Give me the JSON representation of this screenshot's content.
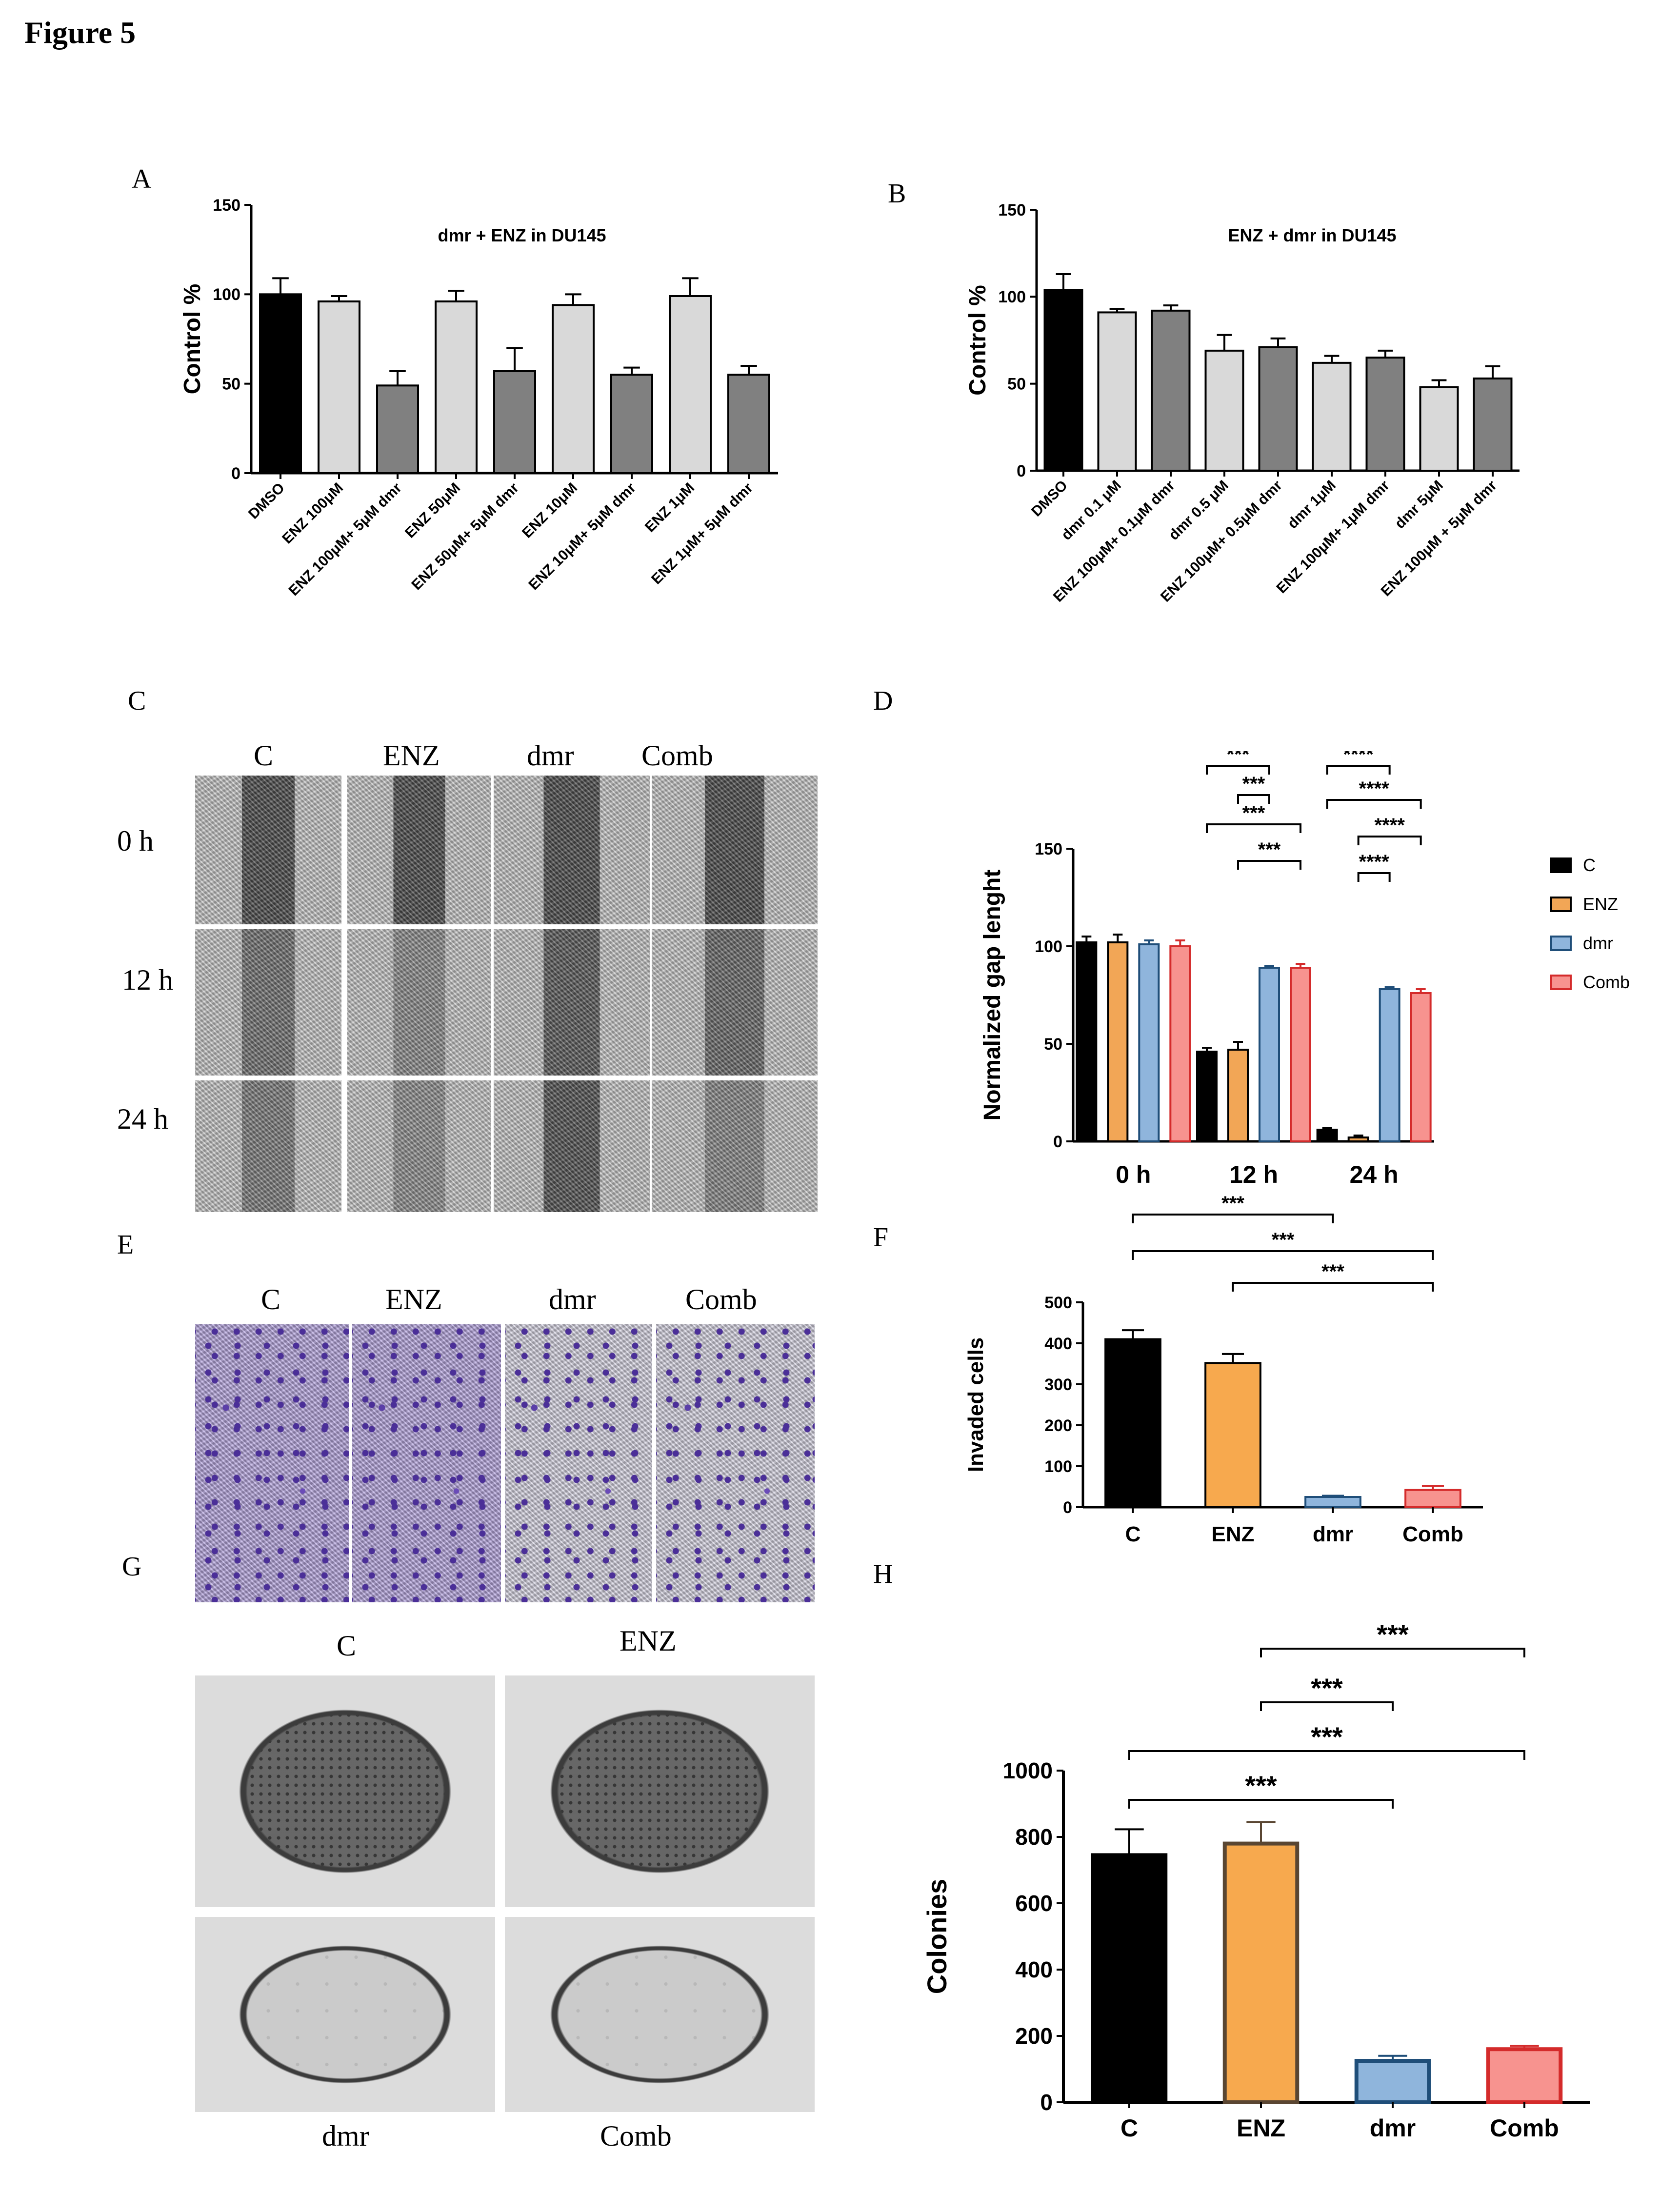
{
  "figure_title": "Figure 5",
  "panels": {
    "A": "A",
    "B": "B",
    "C": "C",
    "D": "D",
    "E": "E",
    "F": "F",
    "G": "G",
    "H": "H"
  },
  "scratch_assay": {
    "columns": [
      "C",
      "ENZ",
      "dmr",
      "Comb"
    ],
    "rows": [
      "0 h",
      "12 h",
      "24 h"
    ]
  },
  "invasion_images": {
    "columns": [
      "C",
      "ENZ",
      "dmr",
      "Comb"
    ]
  },
  "colony_images": {
    "top": [
      "C",
      "ENZ"
    ],
    "bottom": [
      "dmr",
      "Comb"
    ]
  },
  "chart_data": [
    {
      "id": "A",
      "type": "bar",
      "title": "dmr + ENZ in DU145",
      "ylabel": "Control %",
      "ylim": [
        0,
        150
      ],
      "yticks": [
        0,
        50,
        100,
        150
      ],
      "categories": [
        "DMSO",
        "ENZ 100μM",
        "ENZ 100μM+ 5μM dmr",
        "ENZ 50μM",
        "ENZ 50μM+ 5μM dmr",
        "ENZ 10μM",
        "ENZ 10μM+ 5μM dmr",
        "ENZ 1μM",
        "ENZ 1μM+ 5μM dmr"
      ],
      "values": [
        100,
        96,
        49,
        96,
        57,
        94,
        55,
        99,
        55
      ],
      "errors": [
        9,
        3,
        8,
        6,
        13,
        6,
        4,
        10,
        5
      ],
      "colors": [
        "#000000",
        "#d9d9d9",
        "#808080",
        "#d9d9d9",
        "#808080",
        "#d9d9d9",
        "#808080",
        "#d9d9d9",
        "#808080"
      ]
    },
    {
      "id": "B",
      "type": "bar",
      "title": "ENZ + dmr in DU145",
      "ylabel": "Control %",
      "ylim": [
        0,
        150
      ],
      "yticks": [
        0,
        50,
        100,
        150
      ],
      "categories": [
        "DMSO",
        "dmr 0.1 μM",
        "ENZ 100μM+ 0.1μM dmr",
        "dmr 0.5 μM",
        "ENZ 100μM+ 0.5μM dmr",
        "dmr 1μM",
        "ENZ 100μM+ 1μM dmr",
        "dmr 5μM",
        "ENZ 100μM + 5μM dmr"
      ],
      "values": [
        104,
        91,
        92,
        69,
        71,
        62,
        65,
        48,
        53
      ],
      "errors": [
        9,
        2,
        3,
        9,
        5,
        4,
        4,
        4,
        7
      ],
      "colors": [
        "#000000",
        "#d9d9d9",
        "#808080",
        "#d9d9d9",
        "#808080",
        "#d9d9d9",
        "#808080",
        "#d9d9d9",
        "#808080"
      ]
    },
    {
      "id": "D",
      "type": "bar",
      "ylabel": "Normalized gap lenght",
      "ylim": [
        0,
        150
      ],
      "yticks": [
        0,
        50,
        100,
        150
      ],
      "categories": [
        "0 h",
        "12 h",
        "24 h"
      ],
      "legend": [
        "C",
        "ENZ",
        "dmr",
        "Comb"
      ],
      "legend_position": "right",
      "series": [
        {
          "name": "C",
          "values": [
            102,
            46,
            6
          ],
          "errors": [
            3,
            2,
            1
          ],
          "color": "#000000",
          "edge": "#000000"
        },
        {
          "name": "ENZ",
          "values": [
            102,
            47,
            2
          ],
          "errors": [
            4,
            4,
            1
          ],
          "color": "#f2a656",
          "edge": "#000000"
        },
        {
          "name": "dmr",
          "values": [
            101,
            89,
            78
          ],
          "errors": [
            2,
            1,
            1
          ],
          "color": "#8fb5dc",
          "edge": "#1f4e79"
        },
        {
          "name": "Comb",
          "values": [
            100,
            89,
            76
          ],
          "errors": [
            3,
            2,
            2
          ],
          "color": "#f7938f",
          "edge": "#d42b2b"
        }
      ],
      "annotations": [
        "***",
        "***",
        "***",
        "***",
        "****",
        "****",
        "****",
        "****"
      ]
    },
    {
      "id": "F",
      "type": "bar",
      "ylabel": "Invaded cells",
      "ylim": [
        0,
        500
      ],
      "yticks": [
        0,
        100,
        200,
        300,
        400,
        500
      ],
      "categories": [
        "C",
        "ENZ",
        "dmr",
        "Comb"
      ],
      "values": [
        410,
        352,
        25,
        42
      ],
      "errors": [
        22,
        22,
        3,
        10
      ],
      "colors": [
        "#000000",
        "#f7a94e",
        "#8fb5dc",
        "#f7938f"
      ],
      "edges": [
        "#000000",
        "#000000",
        "#1f4e79",
        "#d42b2b"
      ],
      "annotations": [
        "***",
        "***",
        "***"
      ]
    },
    {
      "id": "H",
      "type": "bar",
      "ylabel": "Colonies",
      "ylim": [
        0,
        1000
      ],
      "yticks": [
        0,
        200,
        400,
        600,
        800,
        1000
      ],
      "categories": [
        "C",
        "ENZ",
        "dmr",
        "Comb"
      ],
      "values": [
        745,
        780,
        125,
        160
      ],
      "errors": [
        78,
        65,
        15,
        10
      ],
      "colors": [
        "#000000",
        "#f7a94e",
        "#8fb5dc",
        "#f7938f"
      ],
      "edges": [
        "#000000",
        "#5a4632",
        "#1f4e79",
        "#d42b2b"
      ],
      "annotations": [
        "***",
        "***",
        "***",
        "***"
      ]
    }
  ]
}
